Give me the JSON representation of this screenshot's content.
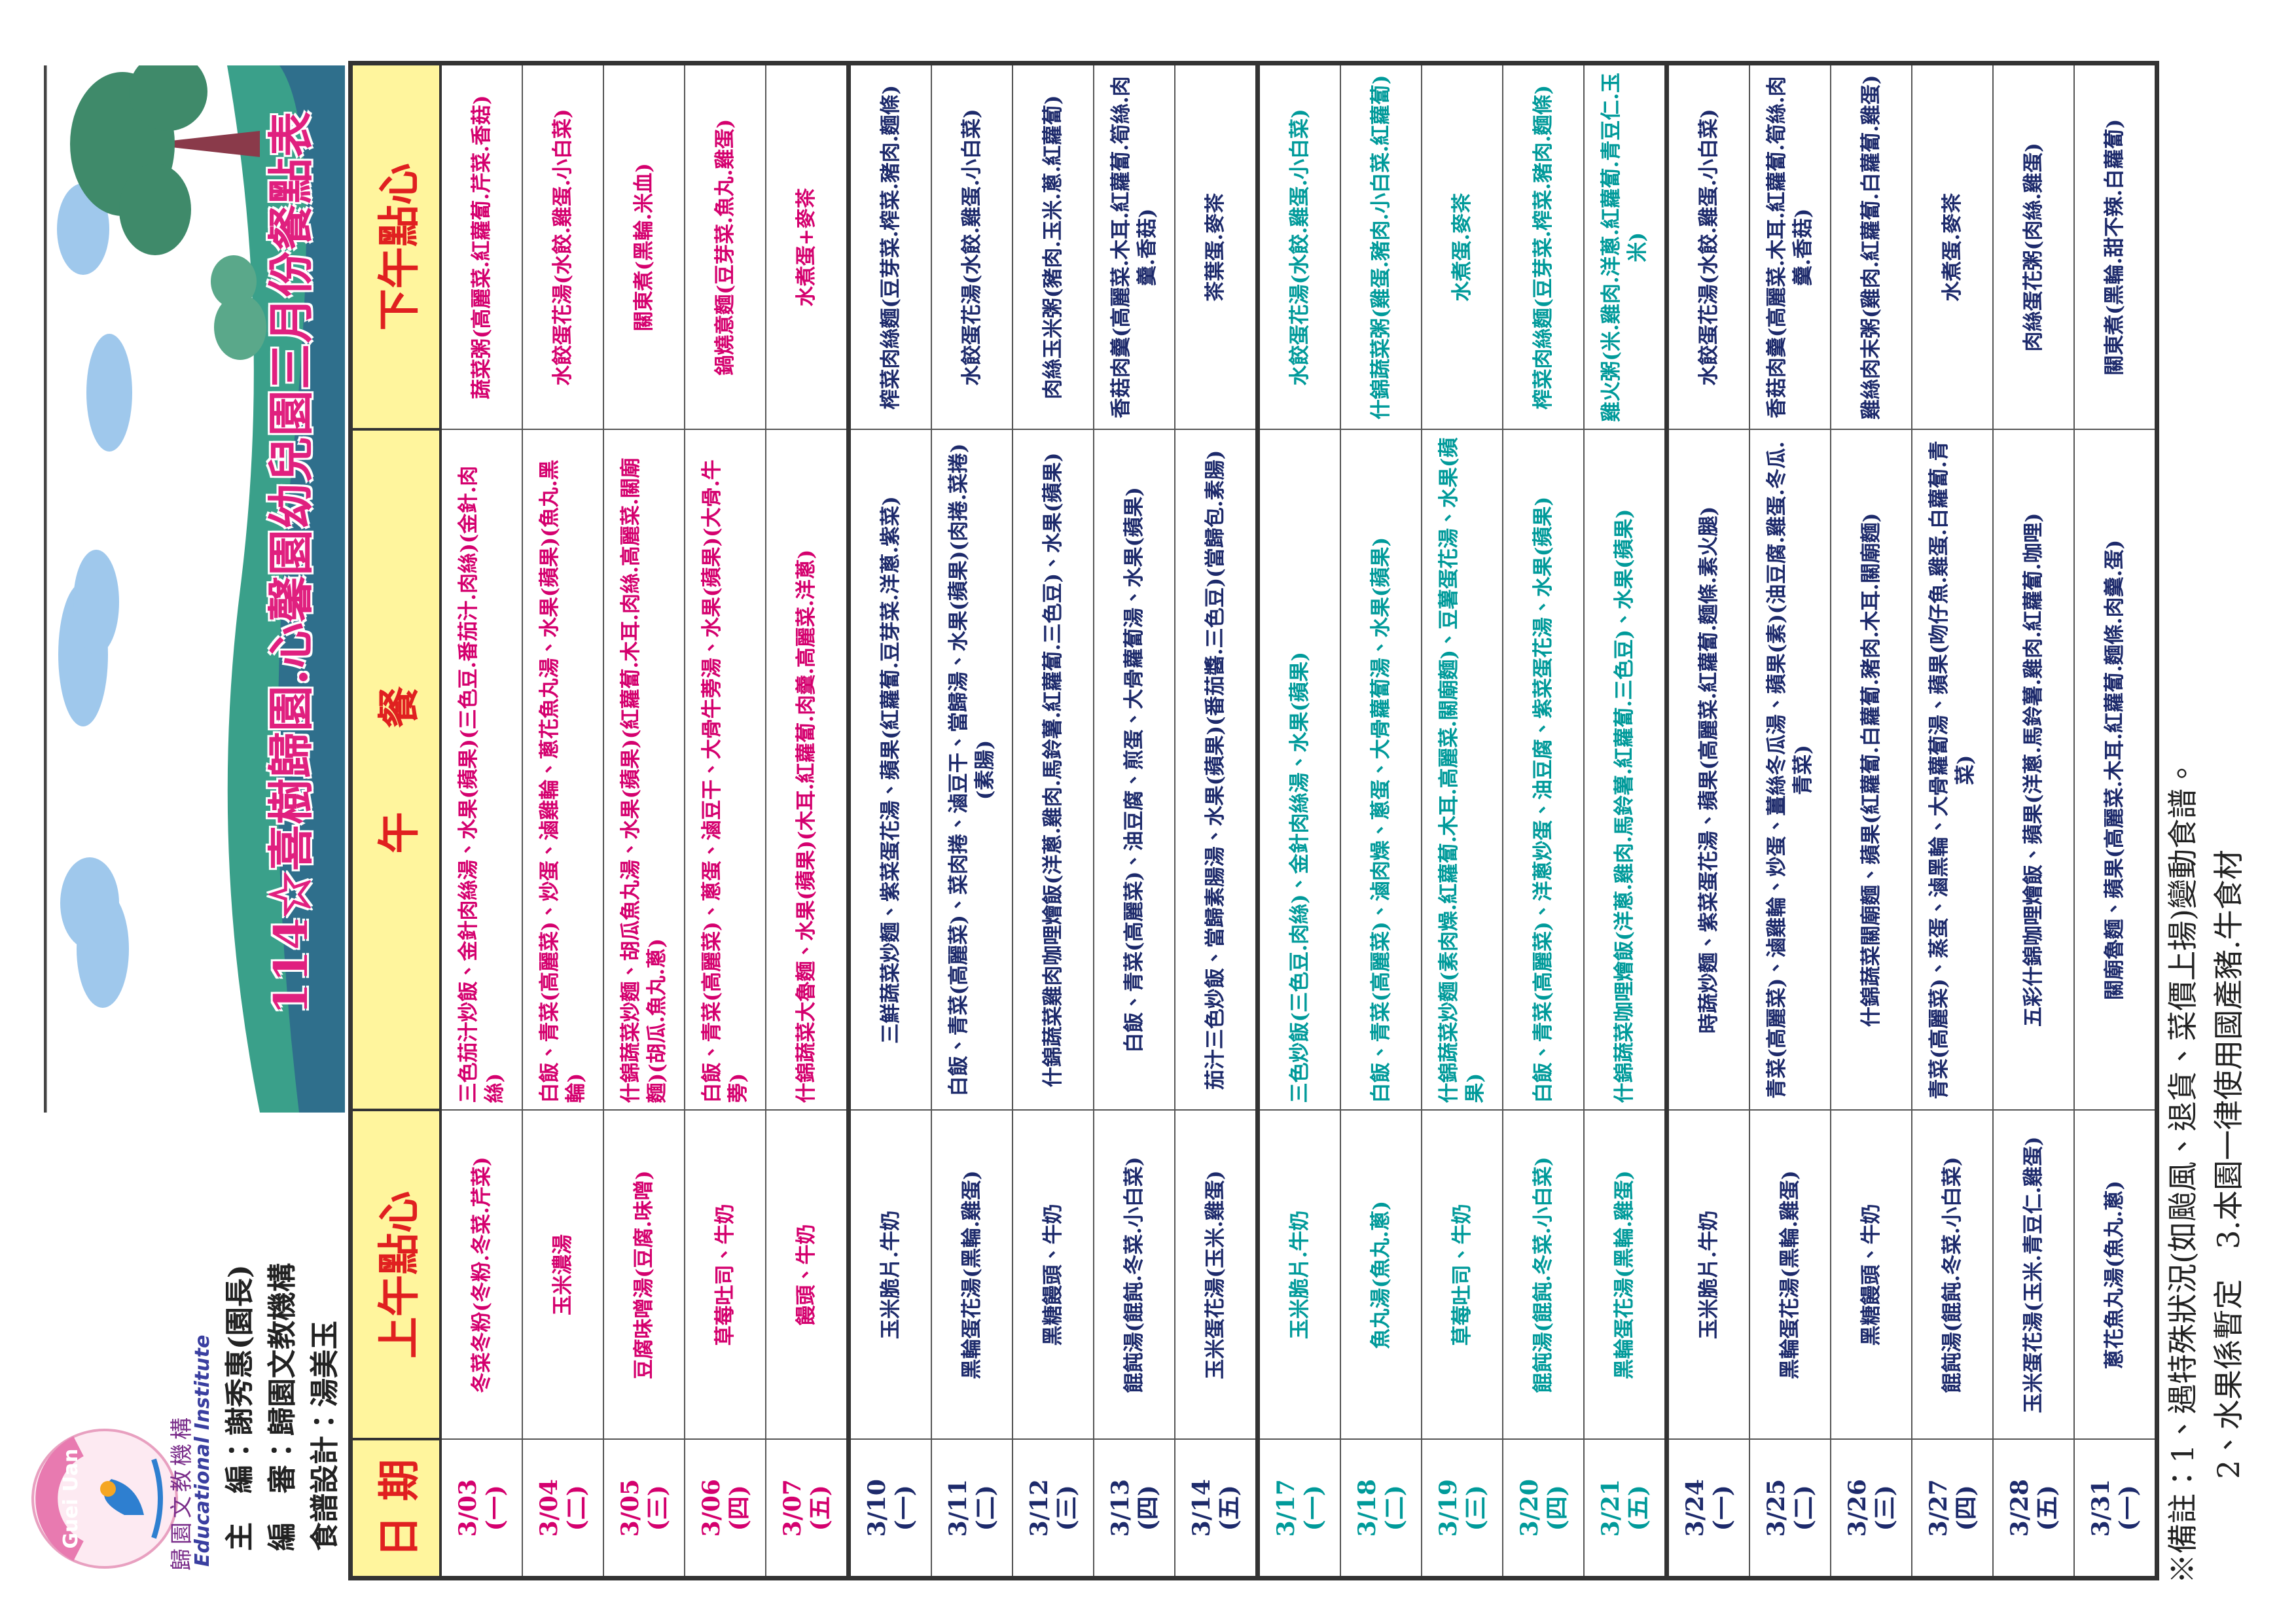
{
  "header": {
    "title": "114☆喜樹歸園.心馨園幼兒園三月份餐點表",
    "logo_arch": "Guei Uan",
    "logo_name": "歸園文教機構",
    "logo_english": "Educational Institute",
    "credits": [
      "主　編：謝秀惠(園長)",
      "編　審：歸園文教機構",
      "食譜設計：湯美玉"
    ]
  },
  "table": {
    "columns": [
      "日 期",
      "上午點心",
      "午　　餐",
      "下午點心"
    ],
    "weeks": [
      {
        "rows": [
          {
            "date": "3/03",
            "day": "(一)",
            "morning": "冬菜冬粉(冬粉.冬菜.芹菜)",
            "lunch": "三色茄汁炒飯、金針肉絲湯、水果(蘋果)(三色豆.番茄汁.肉絲)(金針.肉絲)",
            "afternoon": "蔬菜粥(高麗菜.紅蘿蔔.芹菜.香菇)"
          },
          {
            "date": "3/04",
            "day": "(二)",
            "morning": "玉米濃湯",
            "lunch": "白飯、青菜(高麗菜)、炒蛋、滷雞輪、蔥花魚丸湯、水果(蘋果)(魚丸.黑輪)",
            "afternoon": "水餃蛋花湯(水餃.雞蛋.小白菜)"
          },
          {
            "date": "3/05",
            "day": "(三)",
            "morning": "豆腐味噌湯(豆腐.味噌)",
            "lunch": "什錦蔬菜炒麵、胡瓜魚丸湯、水果(蘋果)(紅蘿蔔.木耳.肉絲.高麗菜.關廟麵)(胡瓜.魚丸.蔥)",
            "afternoon": "關東煮(黑輪.米血)"
          },
          {
            "date": "3/06",
            "day": "(四)",
            "morning": "草莓吐司、牛奶",
            "lunch": "白飯、青菜(高麗菜)、蔥蛋、滷豆干、大骨牛蒡湯、水果(蘋果)(大骨.牛蒡)",
            "afternoon": "鍋燒意麵(豆芽菜.魚丸.雞蛋)"
          },
          {
            "date": "3/07",
            "day": "(五)",
            "morning": "饅頭、牛奶",
            "lunch": "什錦蔬菜大魯麵、水果(蘋果)(木耳.紅蘿蔔.肉羹.高麗菜.洋蔥)",
            "afternoon": "水煮蛋+麥茶"
          }
        ]
      },
      {
        "rows": [
          {
            "date": "3/10",
            "day": "(一)",
            "morning": "玉米脆片.牛奶",
            "lunch": "三鮮蔬菜炒麵、紫菜蛋花湯、蘋果(紅蘿蔔.豆芽菜.洋蔥.紫菜)",
            "afternoon": "榨菜肉絲麵(豆芽菜.榨菜.豬肉.麵條)"
          },
          {
            "date": "3/11",
            "day": "(二)",
            "morning": "黑輪蛋花湯(黑輪.雞蛋)",
            "lunch": "白飯、青菜(高麗菜)、菜肉捲、滷豆干、當歸湯、水果(蘋果)(肉捲.菜捲)(素腸)",
            "afternoon": "水餃蛋花湯(水餃.雞蛋.小白菜)"
          },
          {
            "date": "3/12",
            "day": "(三)",
            "morning": "黑糖饅頭、牛奶",
            "lunch": "什錦蔬菜雞肉咖哩燴飯(洋蔥.雞肉.馬鈴薯.紅蘿蔔.三色豆)、水果(蘋果)",
            "afternoon": "肉絲玉米粥(豬肉.玉米.蔥.紅蘿蔔)"
          },
          {
            "date": "3/13",
            "day": "(四)",
            "morning": "餛飩湯(餛飩.冬菜.小白菜)",
            "lunch": "白飯、青菜(高麗菜)、油豆腐、煎蛋、大骨蘿蔔湯、水果(蘋果)",
            "afternoon": "香菇肉羹(高麗菜.木耳.紅蘿蔔.筍絲.肉羹.香菇)"
          },
          {
            "date": "3/14",
            "day": "(五)",
            "morning": "玉米蛋花湯(玉米.雞蛋)",
            "lunch": "茄汁三色炒飯、當歸素腸湯、水果(蘋果)(番茄醬.三色豆)(當歸包.素腸)",
            "afternoon": "茶葉蛋.麥茶"
          }
        ]
      },
      {
        "rows": [
          {
            "date": "3/17",
            "day": "(一)",
            "morning": "玉米脆片.牛奶",
            "lunch": "三色炒飯(三色豆.肉絲)、金針肉絲湯、水果(蘋果)",
            "afternoon": "水餃蛋花湯(水餃.雞蛋.小白菜)"
          },
          {
            "date": "3/18",
            "day": "(二)",
            "morning": "魚丸湯(魚丸.蔥)",
            "lunch": "白飯、青菜(高麗菜)、滷肉燥、蔥蛋、大骨蘿蔔湯、水果(蘋果)",
            "afternoon": "什錦蔬菜粥(雞蛋.豬肉.小白菜.紅蘿蔔)"
          },
          {
            "date": "3/19",
            "day": "(三)",
            "morning": "草莓吐司、牛奶",
            "lunch": "什錦蔬菜炒麵(素肉燥.紅蘿蔔.木耳.高麗菜.關廟麵)、豆薯蛋花湯、水果(蘋果)",
            "afternoon": "水煮蛋.麥茶"
          },
          {
            "date": "3/20",
            "day": "(四)",
            "morning": "餛飩湯(餛飩.冬菜.小白菜)",
            "lunch": "白飯、青菜(高麗菜)、洋蔥炒蛋、油豆腐、紫菜蛋花湯、水果(蘋果)",
            "afternoon": "榨菜肉絲麵(豆芽菜.榨菜.豬肉.麵條)"
          },
          {
            "date": "3/21",
            "day": "(五)",
            "morning": "黑輪蛋花湯(黑輪.雞蛋)",
            "lunch": "什錦蔬菜咖哩燴飯(洋蔥.雞肉.馬鈴薯.紅蘿蔔.三色豆)、水果(蘋果)",
            "afternoon": "雞火粥(米.雞肉.洋蔥.紅蘿蔔.青豆仁.玉米)"
          }
        ]
      },
      {
        "rows": [
          {
            "date": "3/24",
            "day": "(一)",
            "morning": "玉米脆片.牛奶",
            "lunch": "時蔬炒麵、紫菜蛋花湯、蘋果(高麗菜.紅蘿蔔.麵條.素火腿)",
            "afternoon": "水餃蛋花湯(水餃.雞蛋.小白菜)"
          },
          {
            "date": "3/25",
            "day": "(二)",
            "morning": "黑輪蛋花湯(黑輪.雞蛋)",
            "lunch": "青菜(高麗菜)、滷雞輪、炒蛋、薑絲冬瓜湯、蘋果(素)(油豆腐.雞蛋.冬瓜.青菜)",
            "afternoon": "香菇肉羹(高麗菜.木耳.紅蘿蔔.筍絲.肉羹.香菇)"
          },
          {
            "date": "3/26",
            "day": "(三)",
            "morning": "黑糖饅頭、牛奶",
            "lunch": "什錦蔬菜關廟麵、蘋果(紅蘿蔔.白蘿蔔.豬肉.木耳.關廟麵)",
            "afternoon": "雞絲肉末粥(雞肉.紅蘿蔔.白蘿蔔.雞蛋)"
          },
          {
            "date": "3/27",
            "day": "(四)",
            "morning": "餛飩湯(餛飩.冬菜.小白菜)",
            "lunch": "青菜(高麗菜)、蒸蛋、滷黑輪、大骨蘿蔔湯、蘋果(吻仔魚.雞蛋.白蘿蔔.青菜)",
            "afternoon": "水煮蛋.麥茶"
          },
          {
            "date": "3/28",
            "day": "(五)",
            "morning": "玉米蛋花湯(玉米.青豆仁.雞蛋)",
            "lunch": "五彩什錦咖哩燴飯、蘋果(洋蔥.馬鈴薯.雞肉.紅蘿蔔.咖哩)",
            "afternoon": "肉絲蛋花粥(肉絲.雞蛋)"
          },
          {
            "date": "3/31",
            "day": "(一)",
            "morning": "蔥花魚丸湯(魚丸.蔥)",
            "lunch": "關廟魯麵、蘋果(高麗菜.木耳.紅蘿蔔.麵條.肉羹.蛋)",
            "afternoon": "關東煮(黑輪.甜不辣.白蘿蔔)"
          }
        ]
      }
    ]
  },
  "footer": {
    "notes": [
      "※備註：1、遇特殊狀況(如颱風、退貨、菜價上揚)變動食譜。",
      "2、水果係暫定　3.本園一律使用國產豬.牛食材"
    ]
  }
}
